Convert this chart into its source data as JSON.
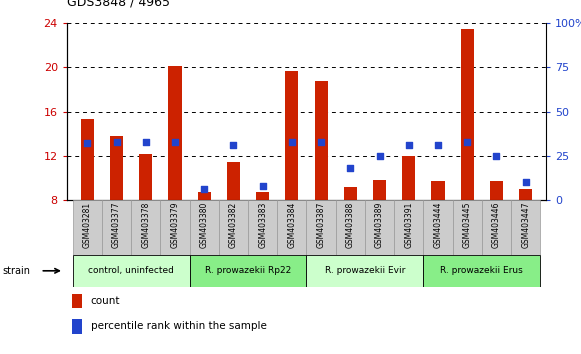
{
  "title": "GDS3848 / 4965",
  "samples": [
    "GSM403281",
    "GSM403377",
    "GSM403378",
    "GSM403379",
    "GSM403380",
    "GSM403382",
    "GSM403383",
    "GSM403384",
    "GSM403387",
    "GSM403388",
    "GSM403389",
    "GSM403391",
    "GSM403444",
    "GSM403445",
    "GSM403446",
    "GSM403447"
  ],
  "count_values": [
    15.3,
    13.8,
    12.2,
    20.1,
    8.7,
    11.4,
    8.7,
    19.7,
    18.8,
    9.2,
    9.8,
    12.0,
    9.7,
    23.5,
    9.7,
    9.0
  ],
  "percentile_values": [
    32,
    33,
    33,
    33,
    6,
    31,
    8,
    33,
    33,
    18,
    25,
    31,
    31,
    33,
    25,
    10
  ],
  "groups": [
    {
      "label": "control, uninfected",
      "start": 0,
      "end": 4,
      "color": "#ccffcc"
    },
    {
      "label": "R. prowazekii Rp22",
      "start": 4,
      "end": 8,
      "color": "#88ee88"
    },
    {
      "label": "R. prowazekii Evir",
      "start": 8,
      "end": 12,
      "color": "#ccffcc"
    },
    {
      "label": "R. prowazekii Erus",
      "start": 12,
      "end": 16,
      "color": "#88ee88"
    }
  ],
  "ylim_left": [
    8,
    24
  ],
  "ylim_right": [
    0,
    100
  ],
  "yticks_left": [
    8,
    12,
    16,
    20,
    24
  ],
  "yticks_right": [
    0,
    25,
    50,
    75,
    100
  ],
  "bar_color": "#cc2200",
  "dot_color": "#2244cc",
  "bar_width": 0.45,
  "dot_size": 14,
  "left_tick_color": "#cc0000",
  "right_tick_color": "#2244cc",
  "cell_color": "#cccccc",
  "cell_edge_color": "#999999"
}
